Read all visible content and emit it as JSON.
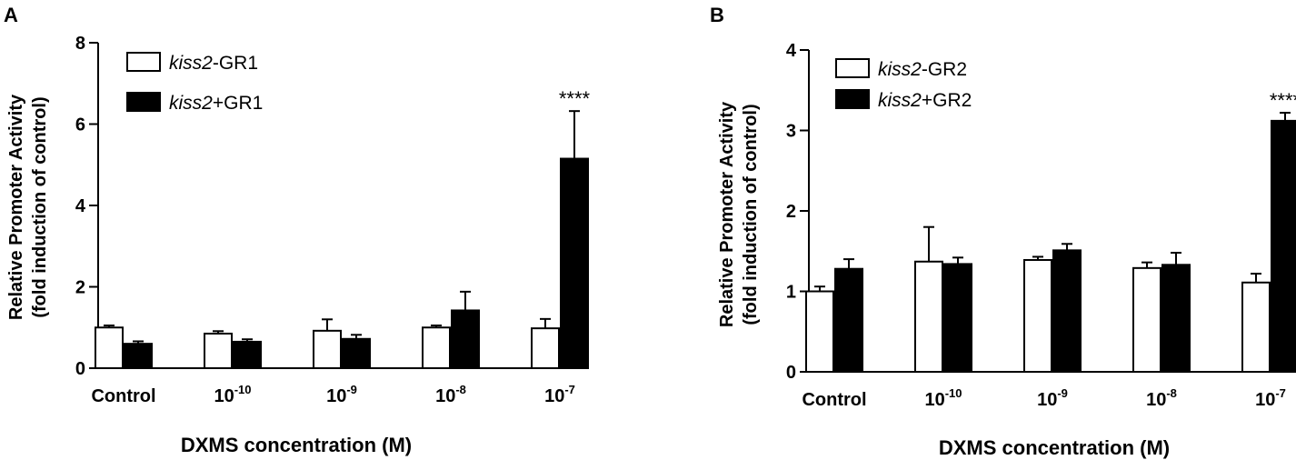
{
  "chart_data": [
    {
      "panel": "A",
      "type": "bar",
      "xlabel": "DXMS concentration (M)",
      "ylabel_line1": "Relative Promoter Activity",
      "ylabel_line2": "(fold induction of control)",
      "ylim": [
        0,
        8
      ],
      "yticks": [
        "0",
        "2",
        "4",
        "6",
        "8"
      ],
      "categories": [
        {
          "base": "Control",
          "exp": ""
        },
        {
          "base": "10",
          "exp": "-10"
        },
        {
          "base": "10",
          "exp": "-9"
        },
        {
          "base": "10",
          "exp": "-8"
        },
        {
          "base": "10",
          "exp": "-7"
        }
      ],
      "series": [
        {
          "legend_italic": "kiss2",
          "legend_rest": "-GR1",
          "fill": "#ffffff",
          "values": [
            1.0,
            0.85,
            0.92,
            1.0,
            0.98
          ],
          "errors": [
            0.05,
            0.06,
            0.28,
            0.05,
            0.23
          ]
        },
        {
          "legend_italic": "kiss2",
          "legend_rest": "+GR1",
          "fill": "#000000",
          "values": [
            0.6,
            0.65,
            0.72,
            1.42,
            5.15
          ],
          "errors": [
            0.06,
            0.06,
            0.1,
            0.46,
            1.17
          ]
        }
      ],
      "annotations": [
        {
          "series": 1,
          "category": 4,
          "text": "****"
        }
      ]
    },
    {
      "panel": "B",
      "type": "bar",
      "xlabel": "DXMS concentration (M)",
      "ylabel_line1": "Relative Promoter Activity",
      "ylabel_line2": "(fold induction of control)",
      "ylim": [
        0,
        4
      ],
      "yticks": [
        "0",
        "1",
        "2",
        "3",
        "4"
      ],
      "categories": [
        {
          "base": "Control",
          "exp": ""
        },
        {
          "base": "10",
          "exp": "-10"
        },
        {
          "base": "10",
          "exp": "-9"
        },
        {
          "base": "10",
          "exp": "-8"
        },
        {
          "base": "10",
          "exp": "-7"
        }
      ],
      "series": [
        {
          "legend_italic": "kiss2",
          "legend_rest": "-GR2",
          "fill": "#ffffff",
          "values": [
            1.0,
            1.37,
            1.39,
            1.29,
            1.11
          ],
          "errors": [
            0.06,
            0.43,
            0.04,
            0.07,
            0.11
          ]
        },
        {
          "legend_italic": "kiss2",
          "legend_rest": "+GR2",
          "fill": "#000000",
          "values": [
            1.28,
            1.34,
            1.51,
            1.33,
            3.12
          ],
          "errors": [
            0.12,
            0.08,
            0.08,
            0.15,
            0.1
          ]
        }
      ],
      "annotations": [
        {
          "series": 1,
          "category": 4,
          "text": "****"
        }
      ]
    }
  ]
}
